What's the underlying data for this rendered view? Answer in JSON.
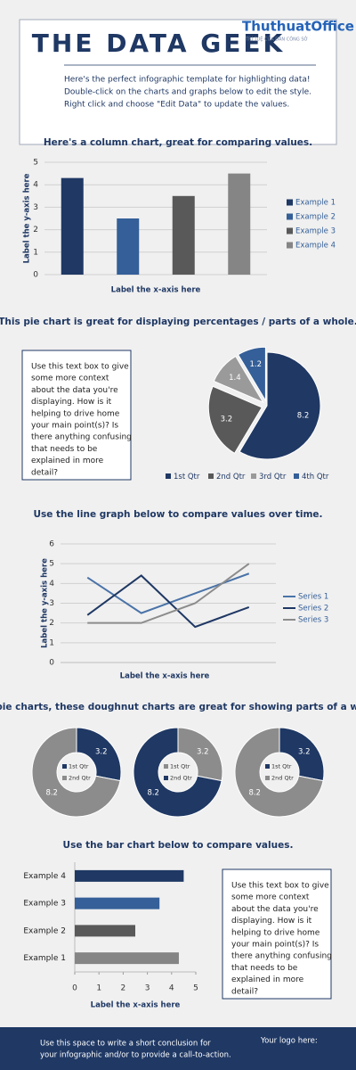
{
  "header": {
    "title": "THE DATA GEEK",
    "watermark": "ThuthuatOffice",
    "watermark_tagline": "TRÍ TUỆ CỦA DÂN CÔNG SỞ",
    "lines": [
      "Here's the perfect infographic template for highlighting data!",
      "Double-click on the charts and graphs below to edit the style.",
      "Right click and choose \"Edit Data\" to update the values."
    ]
  },
  "text_boxes": [
    {
      "lines": [
        "Use this text box to give",
        "some more context",
        "about the data you're",
        "displaying. How is it",
        "helping to drive home",
        "your main point(s)? Is",
        "there anything confusing",
        "that needs to be",
        "explained in more",
        "detail?"
      ]
    },
    {
      "lines": [
        "Use this text box to give",
        "some more context",
        "about the data you're",
        "displaying. How is it",
        "helping to drive home",
        "your main point(s)? Is",
        "there anything confusing",
        "that needs to be",
        "explained in more",
        "detail?"
      ]
    }
  ],
  "footer": {
    "lines": [
      "Use this space to write a short conclusion for",
      "your infographic and/or to provide a call-to-action."
    ],
    "logo": "Your logo here:"
  },
  "chart_data": [
    {
      "type": "column",
      "title": "Here's a column chart, great for comparing values.",
      "y_label": "Label the y-axis here",
      "x_label": "Label the x-axis here",
      "categories": [
        null
      ],
      "series": [
        {
          "name": "Example 1",
          "color": "#1f3864",
          "values": [
            4.3
          ]
        },
        {
          "name": "Example 2",
          "color": "#345f98",
          "values": [
            2.5
          ]
        },
        {
          "name": "Example 3",
          "color": "#595959",
          "values": [
            3.5
          ]
        },
        {
          "name": "Example 4",
          "color": "#858585",
          "values": [
            4.5
          ]
        }
      ],
      "ylim": [
        0,
        5
      ],
      "yticks": [
        0,
        1,
        2,
        3,
        4,
        5
      ],
      "grid": true,
      "legend": "right"
    },
    {
      "type": "pie",
      "title": "This pie chart is great for displaying percentages / parts of a whole.",
      "categories": [
        "1st Qtr",
        "2nd Qtr",
        "3rd Qtr",
        "4th Qtr"
      ],
      "values": [
        8.2,
        3.2,
        1.4,
        1.2
      ],
      "colors": [
        "#1f3864",
        "#595959",
        "#9a9a9a",
        "#345f98"
      ],
      "exploded": true,
      "legend": "bottom"
    },
    {
      "type": "line",
      "title": "Use the line graph below to compare values over time.",
      "y_label": "Label the y-axis here",
      "x_label": "Label the x-axis here",
      "categories": [
        null,
        null,
        null,
        null
      ],
      "series": [
        {
          "name": "Series 1",
          "color": "#4a73a8",
          "values": [
            4.3,
            2.5,
            3.5,
            4.5
          ]
        },
        {
          "name": "Series 2",
          "color": "#1f3864",
          "values": [
            2.4,
            4.4,
            1.8,
            2.8
          ]
        },
        {
          "name": "Series 3",
          "color": "#8c8c8c",
          "values": [
            2,
            2,
            3,
            5
          ]
        }
      ],
      "ylim": [
        0,
        6
      ],
      "yticks": [
        0,
        1,
        2,
        3,
        4,
        5,
        6
      ],
      "grid": true,
      "legend": "right"
    },
    {
      "type": "doughnut",
      "title": "Like pie charts, these doughnut charts are great for showing parts of a whole.",
      "categories": [
        "1st Qtr",
        "2nd Qtr"
      ],
      "doughnuts": [
        {
          "values": [
            3.2,
            8.2
          ],
          "colors": [
            "#1f3864",
            "#8c8c8c"
          ]
        },
        {
          "values": [
            3.2,
            8.2
          ],
          "colors": [
            "#8c8c8c",
            "#1f3864"
          ]
        },
        {
          "values": [
            3.2,
            8.2
          ],
          "colors": [
            "#1f3864",
            "#8c8c8c"
          ]
        }
      ]
    },
    {
      "type": "bar",
      "title": "Use the bar chart below to compare values.",
      "x_label": "Label the x-axis here",
      "categories": [
        "Example 1",
        "Example 2",
        "Example 3",
        "Example 4"
      ],
      "values": [
        4.3,
        2.5,
        3.5,
        4.5
      ],
      "colors": [
        "#858585",
        "#595959",
        "#345f98",
        "#1f3864"
      ],
      "xlim": [
        0,
        5
      ],
      "xticks": [
        0,
        1,
        2,
        3,
        4,
        5
      ]
    }
  ]
}
